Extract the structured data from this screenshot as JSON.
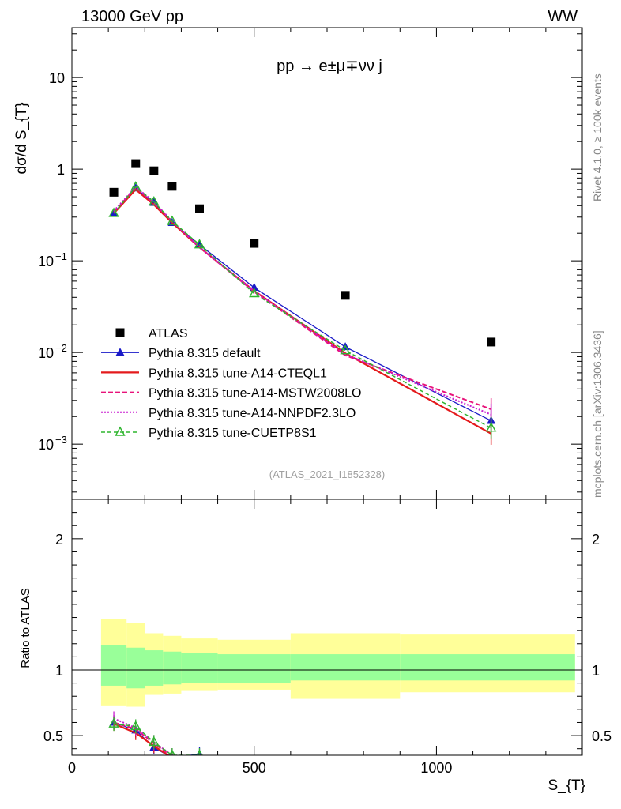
{
  "header": {
    "left": "13000 GeV pp",
    "right": "WW"
  },
  "process_label": "pp → e±μ∓νν j",
  "watermark": "(ATLAS_2021_I1852328)",
  "side_labels": {
    "top": "Rivet 4.1.0, ≥ 100k events",
    "bottom": "mcplots.cern.ch [arXiv:1306.3436]"
  },
  "colors": {
    "atlas": "#000000",
    "default": "#1a1ac8",
    "cteql1": "#e41a1c",
    "mstw": "#e8137a",
    "nnpdf": "#c81ed0",
    "cuetp8s1": "#2fb52f",
    "band_inner": "#99ff99",
    "band_outer": "#ffff99"
  },
  "chart_data": [
    {
      "type": "line",
      "title": "pp → e±μ∓νν j",
      "xlabel": "S_{T}",
      "ylabel": "dσ/d S_{T}",
      "yscale": "log",
      "xlim": [
        0,
        1400
      ],
      "ylim": [
        0.00025,
        35
      ],
      "x_ticks": [
        "0",
        "500",
        "1000"
      ],
      "y_ticks": [
        {
          "value": 10,
          "label": "10"
        },
        {
          "value": 1,
          "label": "1"
        },
        {
          "value": 0.1,
          "label": "10",
          "exp": "−1"
        },
        {
          "value": 0.01,
          "label": "10",
          "exp": "−2"
        },
        {
          "value": 0.001,
          "label": "10",
          "exp": "−3"
        }
      ],
      "x": [
        115,
        175,
        225,
        275,
        350,
        500,
        750,
        1150
      ],
      "series": [
        {
          "name": "ATLAS",
          "key": "atlas",
          "values": [
            0.56,
            1.15,
            0.96,
            0.65,
            0.37,
            0.155,
            0.042,
            0.013
          ]
        },
        {
          "name": "Pythia 8.315 default",
          "key": "default",
          "values": [
            0.33,
            0.62,
            0.43,
            0.26,
            0.15,
            0.051,
            0.0115,
            0.0018
          ]
        },
        {
          "name": "Pythia 8.315 tune-A14-CTEQL1",
          "key": "cteql1",
          "values": [
            0.33,
            0.6,
            0.41,
            0.26,
            0.14,
            0.047,
            0.0098,
            0.0013
          ]
        },
        {
          "name": "Pythia 8.315 tune-A14-MSTW2008LO",
          "key": "mstw",
          "values": [
            0.34,
            0.63,
            0.42,
            0.27,
            0.14,
            0.046,
            0.0093,
            0.0024
          ]
        },
        {
          "name": "Pythia 8.315 tune-A14-NNPDF2.3LO",
          "key": "nnpdf",
          "values": [
            0.35,
            0.64,
            0.44,
            0.27,
            0.14,
            0.047,
            0.0096,
            0.0021
          ]
        },
        {
          "name": "Pythia 8.315 tune-CUETP8S1",
          "key": "cuetp8s1",
          "values": [
            0.33,
            0.64,
            0.44,
            0.27,
            0.15,
            0.044,
            0.0105,
            0.0015
          ]
        }
      ]
    },
    {
      "type": "line",
      "ylabel": "Ratio to ATLAS",
      "xlabel": "S_{T}",
      "xlim": [
        0,
        1400
      ],
      "ylim": [
        0.35,
        2.3
      ],
      "y_ticks": [
        "0.5",
        "1",
        "2"
      ],
      "bins": [
        [
          80,
          150
        ],
        [
          150,
          200
        ],
        [
          200,
          250
        ],
        [
          250,
          300
        ],
        [
          300,
          400
        ],
        [
          400,
          600
        ],
        [
          600,
          900
        ],
        [
          900,
          1380
        ]
      ],
      "band_inner": [
        [
          0.88,
          1.19
        ],
        [
          0.86,
          1.17
        ],
        [
          0.88,
          1.15
        ],
        [
          0.89,
          1.14
        ],
        [
          0.9,
          1.13
        ],
        [
          0.9,
          1.12
        ],
        [
          0.92,
          1.12
        ],
        [
          0.92,
          1.12
        ]
      ],
      "band_outer": [
        [
          0.73,
          1.39
        ],
        [
          0.72,
          1.36
        ],
        [
          0.81,
          1.28
        ],
        [
          0.82,
          1.26
        ],
        [
          0.84,
          1.24
        ],
        [
          0.85,
          1.23
        ],
        [
          0.78,
          1.28
        ],
        [
          0.83,
          1.27
        ]
      ],
      "x": [
        115,
        175,
        225,
        275,
        350
      ],
      "series": [
        {
          "name": "Pythia 8.315 default",
          "key": "default",
          "values": [
            0.6,
            0.54,
            0.41,
            0.33,
            0.36
          ]
        },
        {
          "name": "Pythia 8.315 tune-A14-CTEQL1",
          "key": "cteql1",
          "values": [
            0.59,
            0.52,
            0.42,
            0.33,
            0.3
          ]
        },
        {
          "name": "Pythia 8.315 tune-A14-MSTW2008LO",
          "key": "mstw",
          "values": [
            0.6,
            0.55,
            0.44,
            0.34,
            0.31
          ]
        },
        {
          "name": "Pythia 8.315 tune-A14-NNPDF2.3LO",
          "key": "nnpdf",
          "values": [
            0.63,
            0.56,
            0.45,
            0.35,
            0.31
          ]
        },
        {
          "name": "Pythia 8.315 tune-CUETP8S1",
          "key": "cuetp8s1",
          "values": [
            0.59,
            0.57,
            0.45,
            0.35,
            0.35
          ]
        }
      ]
    }
  ]
}
